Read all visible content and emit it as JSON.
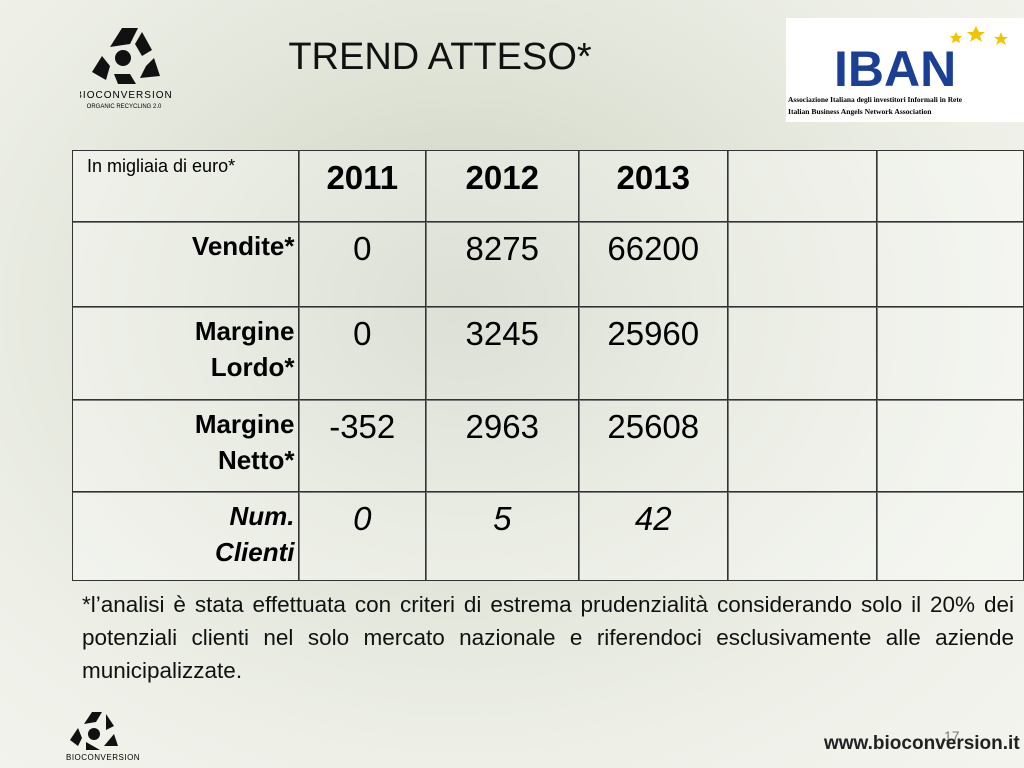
{
  "header": {
    "title": "TREND ATTESO*",
    "logo_left": {
      "name": "BIOCONVERSION",
      "tagline": "ORGANIC RECYCLING 2.0"
    },
    "logo_right": {
      "name": "IBAN",
      "line1": "Associazione Italiana degli investitori Informali in Rete",
      "line2": "Italian Business Angels Network Association"
    }
  },
  "table": {
    "columns": [
      "In migliaia di euro*",
      "2011",
      "2012",
      "2013"
    ],
    "rows": [
      {
        "label": "Vendite*",
        "values": [
          0,
          8275,
          66200
        ]
      },
      {
        "label": "Margine Lordo*",
        "values": [
          0,
          3245,
          25960
        ]
      },
      {
        "label": "Margine Netto*",
        "values": [
          -352,
          2963,
          25608
        ]
      },
      {
        "label": "Num. Clienti",
        "values": [
          0,
          5,
          42
        ]
      }
    ]
  },
  "footnote": "*l’analisi è stata effettuata con criteri di estrema prudenzialità considerando solo il 20% dei potenziali clienti nel solo mercato nazionale e riferendoci esclusivamente alle aziende municipalizzate.",
  "footer": {
    "logo_name": "BIOCONVERSION",
    "url": "www.bioconversion.it",
    "page_number": "17"
  }
}
